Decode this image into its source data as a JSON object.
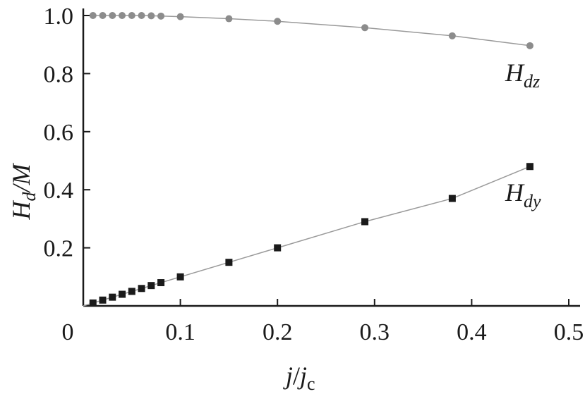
{
  "chart_data": {
    "type": "scatter",
    "xlabel": {
      "base": "j",
      "sep": "/",
      "base2": "j",
      "sub2": "c"
    },
    "ylabel": {
      "base": "H",
      "sub": "d",
      "tail": "/M"
    },
    "xlim": [
      0,
      0.5
    ],
    "ylim": [
      0,
      1.0
    ],
    "x_ticks": [
      0,
      0.1,
      0.2,
      0.3,
      0.4,
      0.5
    ],
    "x_tick_labels": [
      "0",
      "0.1",
      "0.2",
      "0.3",
      "0.4",
      "0.5"
    ],
    "y_ticks": [
      0.2,
      0.4,
      0.6,
      0.8,
      1.0
    ],
    "y_tick_labels": [
      "0.2",
      "0.4",
      "0.6",
      "0.8",
      "1.0"
    ],
    "grid": false,
    "series": [
      {
        "name": {
          "base": "H",
          "sub": "dz"
        },
        "marker": "circle",
        "color": "#8c8c8c",
        "x": [
          0.01,
          0.02,
          0.03,
          0.04,
          0.05,
          0.06,
          0.07,
          0.08,
          0.1,
          0.15,
          0.2,
          0.29,
          0.38,
          0.46
        ],
        "y": [
          1.0,
          1.0,
          1.0,
          1.0,
          1.0,
          1.0,
          0.999,
          0.998,
          0.996,
          0.989,
          0.98,
          0.958,
          0.93,
          0.896
        ]
      },
      {
        "name": {
          "base": "H",
          "sub": "dy"
        },
        "marker": "square",
        "color": "#1a1a1a",
        "x": [
          0.01,
          0.02,
          0.03,
          0.04,
          0.05,
          0.06,
          0.07,
          0.08,
          0.1,
          0.15,
          0.2,
          0.29,
          0.38,
          0.46
        ],
        "y": [
          0.01,
          0.02,
          0.03,
          0.04,
          0.05,
          0.06,
          0.07,
          0.08,
          0.1,
          0.15,
          0.2,
          0.29,
          0.37,
          0.48
        ]
      }
    ]
  }
}
